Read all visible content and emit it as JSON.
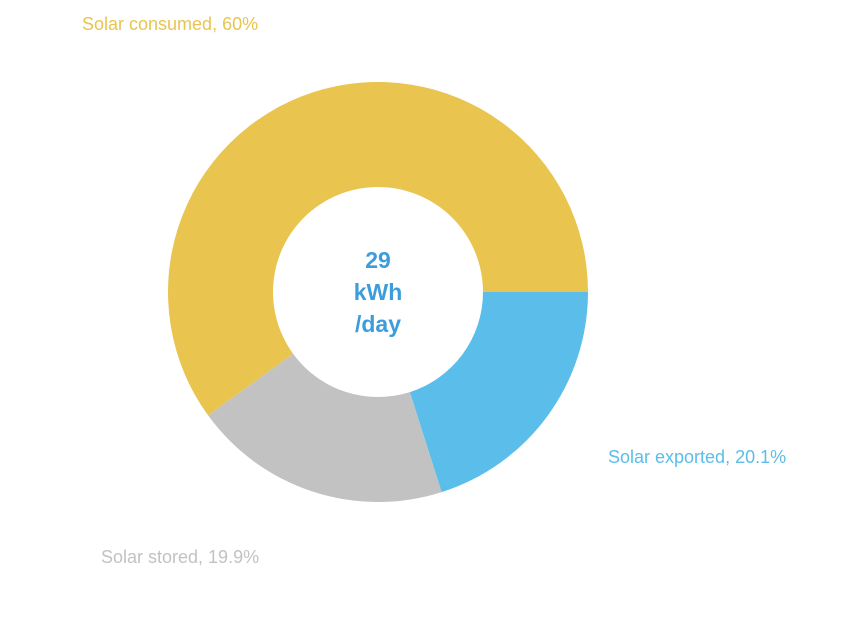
{
  "chart_data": {
    "type": "donut",
    "values": [
      60,
      20.1,
      19.9
    ],
    "value_labels": [
      "Solar consumed, 60%",
      "Solar exported, 20.1%",
      "Solar stored, 19.9%"
    ],
    "colors": [
      "#e9c44f",
      "#5bbdea",
      "#c2c2c2"
    ],
    "center_label": [
      "29",
      "kWh",
      "/day"
    ],
    "center_color": "#3d9ddb"
  }
}
